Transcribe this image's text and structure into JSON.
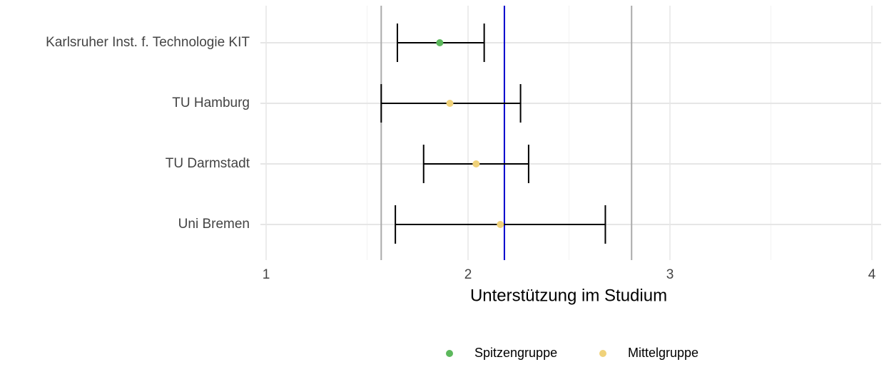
{
  "chart_data": {
    "type": "dot-errorbar",
    "categories": [
      "Karlsruher Inst. f. Technologie KIT",
      "TU Hamburg",
      "TU Darmstadt",
      "Uni Bremen"
    ],
    "values": [
      1.86,
      1.91,
      2.04,
      2.16
    ],
    "lower": [
      1.65,
      1.57,
      1.78,
      1.64
    ],
    "upper": [
      2.08,
      2.26,
      2.3,
      2.68
    ],
    "groups": [
      "Spitzengruppe",
      "Mittelgruppe",
      "Mittelgruppe",
      "Mittelgruppe"
    ],
    "legend": [
      {
        "name": "Spitzengruppe",
        "color": "#5cb85c"
      },
      {
        "name": "Mittelgruppe",
        "color": "#f0d27a"
      }
    ],
    "reference_lines": [
      {
        "value": 1.57,
        "color": "#aaaaaa"
      },
      {
        "value": 2.81,
        "color": "#aaaaaa"
      },
      {
        "value": 2.18,
        "color": "#0000cc"
      }
    ],
    "xlabel": "Unterstützung im Studium",
    "xlim": [
      1,
      4
    ],
    "xticks": [
      1,
      2,
      3,
      4
    ],
    "minor_xticks": [
      1.5,
      2.5,
      3.5
    ],
    "grid": true
  }
}
